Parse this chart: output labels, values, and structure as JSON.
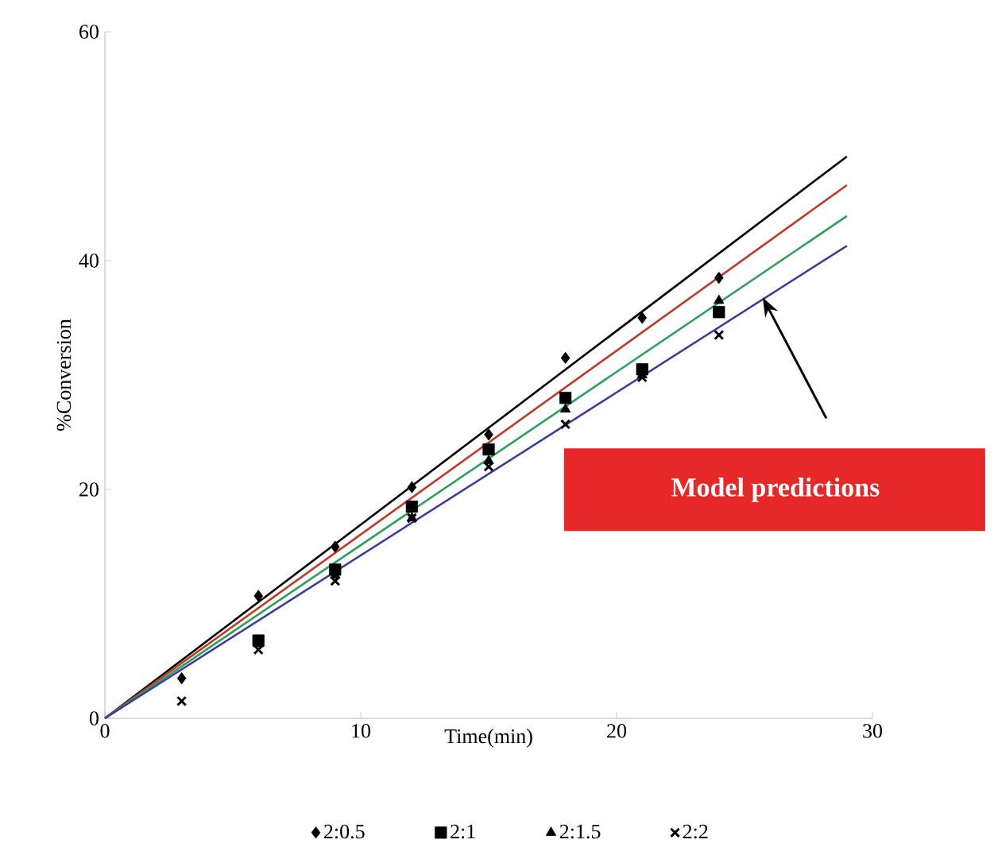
{
  "chart_data": {
    "type": "scatter",
    "xlabel": "Time(min)",
    "ylabel": "%Conversion",
    "xlim": [
      0,
      30
    ],
    "ylim": [
      0,
      60
    ],
    "xticks": [
      0,
      10,
      20,
      30
    ],
    "yticks": [
      0,
      20,
      40,
      60
    ],
    "grid": false,
    "legend": "bottom",
    "annotations": [
      "Model predictions"
    ],
    "series": [
      {
        "name": "2:0.5",
        "color": "#000000",
        "marker": "diamond",
        "x": [
          3,
          6,
          9,
          12,
          15,
          18,
          21,
          24
        ],
        "values": [
          3.5,
          10.7,
          15,
          20.2,
          24.8,
          31.5,
          35,
          38.5
        ]
      },
      {
        "name": "2:1",
        "color": "#000000",
        "marker": "square",
        "x": [
          6,
          9,
          12,
          15,
          18,
          21,
          24
        ],
        "values": [
          6.8,
          13,
          18.5,
          23.5,
          28,
          30.5,
          35.5
        ]
      },
      {
        "name": "2:1.5",
        "color": "#000000",
        "marker": "triangle",
        "x": [
          6,
          9,
          12,
          15,
          18,
          21,
          24
        ],
        "values": [
          6.5,
          12.5,
          17.5,
          22.5,
          27,
          30,
          36.5
        ]
      },
      {
        "name": "2:2",
        "color": "#000000",
        "marker": "cross",
        "x": [
          3,
          6,
          9,
          12,
          15,
          18,
          21,
          24
        ],
        "values": [
          1.5,
          6,
          12,
          17.5,
          22,
          25.7,
          29.8,
          33.5
        ]
      },
      {
        "type": "line",
        "color": "#000000",
        "marker": "none",
        "x": [
          0,
          29
        ],
        "values": [
          0,
          49.1
        ]
      },
      {
        "type": "line",
        "color": "#c0392b",
        "marker": "none",
        "x": [
          0,
          29
        ],
        "values": [
          0,
          46.6
        ]
      },
      {
        "type": "line",
        "color": "#2ca05a",
        "marker": "none",
        "x": [
          0,
          29
        ],
        "values": [
          0,
          43.9
        ]
      },
      {
        "type": "line",
        "color": "#3c3c9c",
        "marker": "none",
        "x": [
          0,
          29
        ],
        "values": [
          0,
          41.3
        ]
      }
    ]
  }
}
